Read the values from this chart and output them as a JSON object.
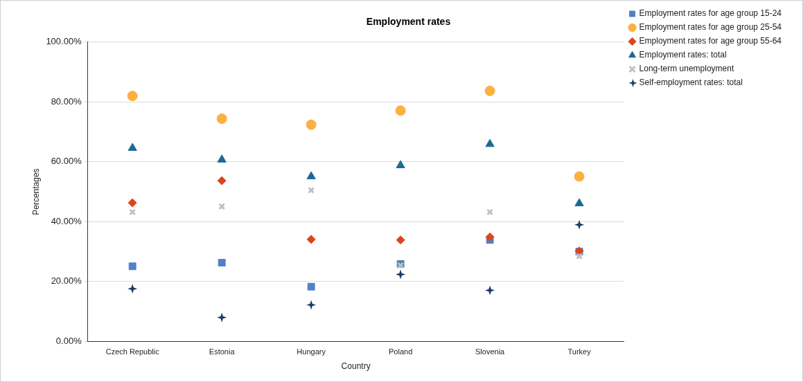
{
  "chart_data": {
    "type": "scatter",
    "title": "Employment rates",
    "xlabel": "Country",
    "ylabel": "Percentages",
    "categories": [
      "Czech Republic",
      "Estonia",
      "Hungary",
      "Poland",
      "Slovenia",
      "Turkey"
    ],
    "series": [
      {
        "name": "Employment rates for age group 15-24",
        "color": "#4f81c7",
        "marker": "square",
        "values": [
          25.1,
          26.3,
          18.3,
          25.9,
          33.9,
          30.0
        ]
      },
      {
        "name": "Employment rates for age group 25-54",
        "color": "#fbb040",
        "marker": "circle",
        "values": [
          82.0,
          74.4,
          72.4,
          77.1,
          83.7,
          55.1
        ]
      },
      {
        "name": "Employment rates for age group 55-64",
        "color": "#e0441c",
        "marker": "diamond",
        "values": [
          46.3,
          53.7,
          34.1,
          33.9,
          34.9,
          30.2
        ]
      },
      {
        "name": "Employment rates: total",
        "color": "#1b6a95",
        "marker": "triangle",
        "values": [
          64.6,
          60.7,
          55.1,
          58.8,
          65.9,
          46.1
        ]
      },
      {
        "name": "Long-term unemployment",
        "color": "#c0c0c0",
        "marker": "cross",
        "values": [
          43.2,
          45.1,
          50.5,
          25.4,
          43.2,
          28.5
        ]
      },
      {
        "name": "Self-employment rates: total",
        "color": "#1f3a68",
        "marker": "star",
        "values": [
          17.6,
          8.0,
          12.2,
          22.4,
          17.1,
          39.0
        ]
      }
    ],
    "ylim": [
      0,
      100
    ],
    "yticks": [
      {
        "value": 0,
        "label": "0.00%"
      },
      {
        "value": 20,
        "label": "20.00%"
      },
      {
        "value": 40,
        "label": "40.00%"
      },
      {
        "value": 60,
        "label": "60.00%"
      },
      {
        "value": 80,
        "label": "80.00%"
      },
      {
        "value": 100,
        "label": "100.00%"
      }
    ],
    "grid": "y",
    "legend": "right"
  }
}
